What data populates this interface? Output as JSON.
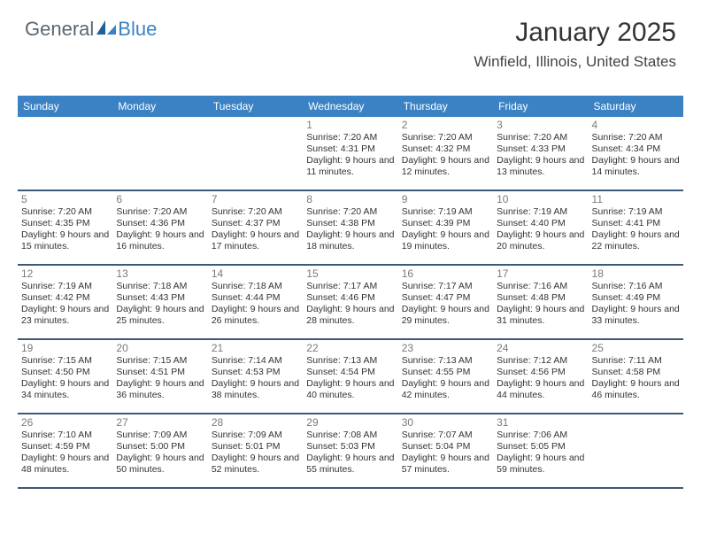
{
  "logo": {
    "text1": "General",
    "text2": "Blue"
  },
  "header": {
    "month_year": "January 2025",
    "location": "Winfield, Illinois, United States"
  },
  "day_names": [
    "Sunday",
    "Monday",
    "Tuesday",
    "Wednesday",
    "Thursday",
    "Friday",
    "Saturday"
  ],
  "colors": {
    "header_bg": "#3b82c4",
    "header_text": "#ffffff",
    "row_border": "#3b5a78",
    "daynum": "#7a7a7a",
    "body_text": "#333333"
  },
  "weeks": [
    [
      null,
      null,
      null,
      {
        "n": "1",
        "sr": "7:20 AM",
        "ss": "4:31 PM",
        "dl": "9 hours and 11 minutes."
      },
      {
        "n": "2",
        "sr": "7:20 AM",
        "ss": "4:32 PM",
        "dl": "9 hours and 12 minutes."
      },
      {
        "n": "3",
        "sr": "7:20 AM",
        "ss": "4:33 PM",
        "dl": "9 hours and 13 minutes."
      },
      {
        "n": "4",
        "sr": "7:20 AM",
        "ss": "4:34 PM",
        "dl": "9 hours and 14 minutes."
      }
    ],
    [
      {
        "n": "5",
        "sr": "7:20 AM",
        "ss": "4:35 PM",
        "dl": "9 hours and 15 minutes."
      },
      {
        "n": "6",
        "sr": "7:20 AM",
        "ss": "4:36 PM",
        "dl": "9 hours and 16 minutes."
      },
      {
        "n": "7",
        "sr": "7:20 AM",
        "ss": "4:37 PM",
        "dl": "9 hours and 17 minutes."
      },
      {
        "n": "8",
        "sr": "7:20 AM",
        "ss": "4:38 PM",
        "dl": "9 hours and 18 minutes."
      },
      {
        "n": "9",
        "sr": "7:19 AM",
        "ss": "4:39 PM",
        "dl": "9 hours and 19 minutes."
      },
      {
        "n": "10",
        "sr": "7:19 AM",
        "ss": "4:40 PM",
        "dl": "9 hours and 20 minutes."
      },
      {
        "n": "11",
        "sr": "7:19 AM",
        "ss": "4:41 PM",
        "dl": "9 hours and 22 minutes."
      }
    ],
    [
      {
        "n": "12",
        "sr": "7:19 AM",
        "ss": "4:42 PM",
        "dl": "9 hours and 23 minutes."
      },
      {
        "n": "13",
        "sr": "7:18 AM",
        "ss": "4:43 PM",
        "dl": "9 hours and 25 minutes."
      },
      {
        "n": "14",
        "sr": "7:18 AM",
        "ss": "4:44 PM",
        "dl": "9 hours and 26 minutes."
      },
      {
        "n": "15",
        "sr": "7:17 AM",
        "ss": "4:46 PM",
        "dl": "9 hours and 28 minutes."
      },
      {
        "n": "16",
        "sr": "7:17 AM",
        "ss": "4:47 PM",
        "dl": "9 hours and 29 minutes."
      },
      {
        "n": "17",
        "sr": "7:16 AM",
        "ss": "4:48 PM",
        "dl": "9 hours and 31 minutes."
      },
      {
        "n": "18",
        "sr": "7:16 AM",
        "ss": "4:49 PM",
        "dl": "9 hours and 33 minutes."
      }
    ],
    [
      {
        "n": "19",
        "sr": "7:15 AM",
        "ss": "4:50 PM",
        "dl": "9 hours and 34 minutes."
      },
      {
        "n": "20",
        "sr": "7:15 AM",
        "ss": "4:51 PM",
        "dl": "9 hours and 36 minutes."
      },
      {
        "n": "21",
        "sr": "7:14 AM",
        "ss": "4:53 PM",
        "dl": "9 hours and 38 minutes."
      },
      {
        "n": "22",
        "sr": "7:13 AM",
        "ss": "4:54 PM",
        "dl": "9 hours and 40 minutes."
      },
      {
        "n": "23",
        "sr": "7:13 AM",
        "ss": "4:55 PM",
        "dl": "9 hours and 42 minutes."
      },
      {
        "n": "24",
        "sr": "7:12 AM",
        "ss": "4:56 PM",
        "dl": "9 hours and 44 minutes."
      },
      {
        "n": "25",
        "sr": "7:11 AM",
        "ss": "4:58 PM",
        "dl": "9 hours and 46 minutes."
      }
    ],
    [
      {
        "n": "26",
        "sr": "7:10 AM",
        "ss": "4:59 PM",
        "dl": "9 hours and 48 minutes."
      },
      {
        "n": "27",
        "sr": "7:09 AM",
        "ss": "5:00 PM",
        "dl": "9 hours and 50 minutes."
      },
      {
        "n": "28",
        "sr": "7:09 AM",
        "ss": "5:01 PM",
        "dl": "9 hours and 52 minutes."
      },
      {
        "n": "29",
        "sr": "7:08 AM",
        "ss": "5:03 PM",
        "dl": "9 hours and 55 minutes."
      },
      {
        "n": "30",
        "sr": "7:07 AM",
        "ss": "5:04 PM",
        "dl": "9 hours and 57 minutes."
      },
      {
        "n": "31",
        "sr": "7:06 AM",
        "ss": "5:05 PM",
        "dl": "9 hours and 59 minutes."
      },
      null
    ]
  ],
  "labels": {
    "sunrise": "Sunrise: ",
    "sunset": "Sunset: ",
    "daylight": "Daylight: "
  }
}
